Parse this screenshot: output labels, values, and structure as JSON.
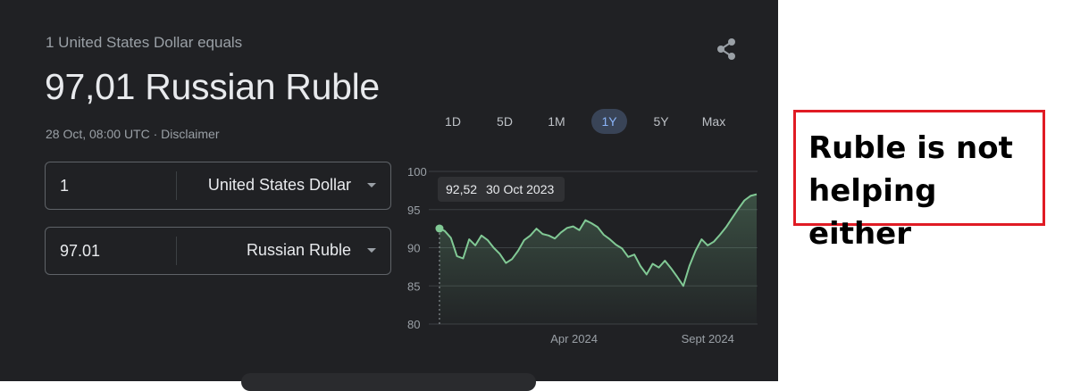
{
  "converter": {
    "subtitle": "1 United States Dollar equals",
    "rate": "97,01 Russian Ruble",
    "timestamp": "28 Oct, 08:00 UTC",
    "separator": " · ",
    "disclaimer": "Disclaimer",
    "from": {
      "amount": "1",
      "currency": "United States Dollar"
    },
    "to": {
      "amount": "97.01",
      "currency": "Russian Ruble"
    },
    "share_icon": "share-icon"
  },
  "range_tabs": [
    {
      "label": "1D",
      "active": false
    },
    {
      "label": "5D",
      "active": false
    },
    {
      "label": "1M",
      "active": false
    },
    {
      "label": "1Y",
      "active": true
    },
    {
      "label": "5Y",
      "active": false
    },
    {
      "label": "Max",
      "active": false
    }
  ],
  "colors": {
    "line": "#81c995",
    "panel": "#202124",
    "note_border": "#e01b24"
  },
  "chart_data": {
    "type": "line",
    "ylim": [
      80,
      100
    ],
    "yticks": [
      80,
      85,
      90,
      95,
      100
    ],
    "xlim": [
      "2023-10-28",
      "2024-10-28"
    ],
    "xtick_labels": [
      {
        "date": "2024-04-01",
        "label": "Apr 2024"
      },
      {
        "date": "2024-09-01",
        "label": "Sept 2024"
      }
    ],
    "tooltip": {
      "value": "92,52",
      "date": "30 Oct 2023"
    },
    "series": [
      {
        "points": [
          [
            "2023-10-30",
            92.52
          ],
          [
            "2023-11-05",
            92.2
          ],
          [
            "2023-11-12",
            91.3
          ],
          [
            "2023-11-19",
            88.9
          ],
          [
            "2023-11-26",
            88.6
          ],
          [
            "2023-12-03",
            91.1
          ],
          [
            "2023-12-10",
            90.3
          ],
          [
            "2023-12-17",
            91.6
          ],
          [
            "2023-12-24",
            91.0
          ],
          [
            "2023-12-31",
            90.0
          ],
          [
            "2024-01-07",
            89.2
          ],
          [
            "2024-01-14",
            88.0
          ],
          [
            "2024-01-21",
            88.5
          ],
          [
            "2024-01-28",
            89.6
          ],
          [
            "2024-02-04",
            91.0
          ],
          [
            "2024-02-11",
            91.6
          ],
          [
            "2024-02-18",
            92.5
          ],
          [
            "2024-02-25",
            91.8
          ],
          [
            "2024-03-03",
            91.6
          ],
          [
            "2024-03-10",
            91.2
          ],
          [
            "2024-03-17",
            92.0
          ],
          [
            "2024-03-24",
            92.6
          ],
          [
            "2024-03-31",
            92.8
          ],
          [
            "2024-04-07",
            92.3
          ],
          [
            "2024-04-14",
            93.6
          ],
          [
            "2024-04-21",
            93.2
          ],
          [
            "2024-04-28",
            92.7
          ],
          [
            "2024-05-05",
            91.7
          ],
          [
            "2024-05-12",
            91.1
          ],
          [
            "2024-05-19",
            90.4
          ],
          [
            "2024-05-26",
            89.9
          ],
          [
            "2024-06-02",
            88.8
          ],
          [
            "2024-06-09",
            89.1
          ],
          [
            "2024-06-16",
            87.6
          ],
          [
            "2024-06-23",
            86.5
          ],
          [
            "2024-06-30",
            87.9
          ],
          [
            "2024-07-07",
            87.4
          ],
          [
            "2024-07-14",
            88.3
          ],
          [
            "2024-07-21",
            87.3
          ],
          [
            "2024-07-28",
            86.2
          ],
          [
            "2024-08-04",
            85.0
          ],
          [
            "2024-08-11",
            87.6
          ],
          [
            "2024-08-18",
            89.6
          ],
          [
            "2024-08-25",
            91.1
          ],
          [
            "2024-09-01",
            90.3
          ],
          [
            "2024-09-08",
            90.8
          ],
          [
            "2024-09-15",
            91.7
          ],
          [
            "2024-09-22",
            92.7
          ],
          [
            "2024-09-29",
            93.9
          ],
          [
            "2024-10-06",
            95.1
          ],
          [
            "2024-10-13",
            96.2
          ],
          [
            "2024-10-20",
            96.8
          ],
          [
            "2024-10-27",
            97.01
          ]
        ]
      }
    ]
  },
  "note": {
    "text": "Ruble is not helping either"
  }
}
